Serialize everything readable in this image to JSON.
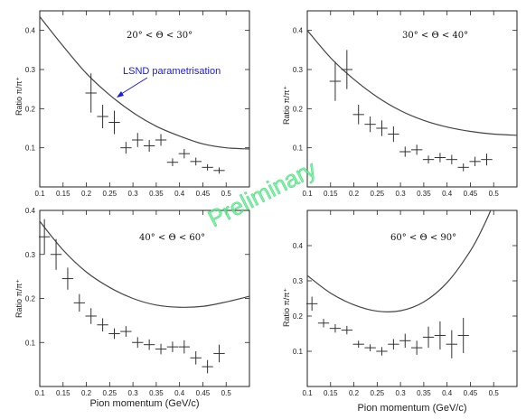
{
  "watermark": "Preliminary",
  "colors": {
    "watermark": "#58f08a",
    "annotation": "#1a1adc",
    "ink": "#222222"
  },
  "chart_data": [
    {
      "type": "scatter",
      "range_label": "20° < Θ < 30°",
      "xlabel": "",
      "ylabel": "Ratio π/π⁺",
      "xlim": [
        0.1,
        0.55
      ],
      "ylim": [
        0,
        0.45
      ],
      "xticks": [
        "0.1",
        "0.15",
        "0.2",
        "0.25",
        "0.3",
        "0.35",
        "0.4",
        "0.45",
        "0.5"
      ],
      "yticks": [
        "0",
        "0.1",
        "0.2",
        "0.3",
        "0.4"
      ],
      "annotation": {
        "text": "LSND parametrisation",
        "target": [
          0.24,
          0.235
        ]
      },
      "points": [
        {
          "x": 0.21,
          "y": 0.24,
          "err": 0.05
        },
        {
          "x": 0.235,
          "y": 0.18,
          "err": 0.03
        },
        {
          "x": 0.26,
          "y": 0.165,
          "err": 0.03
        },
        {
          "x": 0.285,
          "y": 0.1,
          "err": 0.015
        },
        {
          "x": 0.31,
          "y": 0.12,
          "err": 0.018
        },
        {
          "x": 0.335,
          "y": 0.105,
          "err": 0.015
        },
        {
          "x": 0.36,
          "y": 0.12,
          "err": 0.015
        },
        {
          "x": 0.385,
          "y": 0.063,
          "err": 0.01
        },
        {
          "x": 0.41,
          "y": 0.085,
          "err": 0.012
        },
        {
          "x": 0.435,
          "y": 0.065,
          "err": 0.01
        },
        {
          "x": 0.46,
          "y": 0.05,
          "err": 0.008
        },
        {
          "x": 0.485,
          "y": 0.042,
          "err": 0.008
        }
      ],
      "curve": [
        [
          0.1,
          0.435
        ],
        [
          0.15,
          0.36
        ],
        [
          0.2,
          0.29
        ],
        [
          0.25,
          0.235
        ],
        [
          0.3,
          0.19
        ],
        [
          0.35,
          0.155
        ],
        [
          0.4,
          0.13
        ],
        [
          0.45,
          0.11
        ],
        [
          0.5,
          0.1
        ],
        [
          0.55,
          0.097
        ]
      ]
    },
    {
      "type": "scatter",
      "range_label": "30° < Θ < 40°",
      "xlabel": "",
      "ylabel": "Ratio π/π⁺",
      "xlim": [
        0.1,
        0.55
      ],
      "ylim": [
        0,
        0.45
      ],
      "xticks": [
        "0.1",
        "0.15",
        "0.2",
        "0.25",
        "0.3",
        "0.35",
        "0.4",
        "0.45",
        "0.5"
      ],
      "yticks": [
        "0",
        "0.1",
        "0.2",
        "0.3",
        "0.4"
      ],
      "points": [
        {
          "x": 0.16,
          "y": 0.27,
          "err": 0.05
        },
        {
          "x": 0.185,
          "y": 0.3,
          "err": 0.05
        },
        {
          "x": 0.21,
          "y": 0.185,
          "err": 0.025
        },
        {
          "x": 0.235,
          "y": 0.16,
          "err": 0.02
        },
        {
          "x": 0.26,
          "y": 0.15,
          "err": 0.02
        },
        {
          "x": 0.285,
          "y": 0.135,
          "err": 0.02
        },
        {
          "x": 0.31,
          "y": 0.09,
          "err": 0.013
        },
        {
          "x": 0.335,
          "y": 0.095,
          "err": 0.013
        },
        {
          "x": 0.36,
          "y": 0.07,
          "err": 0.01
        },
        {
          "x": 0.385,
          "y": 0.075,
          "err": 0.012
        },
        {
          "x": 0.41,
          "y": 0.07,
          "err": 0.012
        },
        {
          "x": 0.435,
          "y": 0.05,
          "err": 0.01
        },
        {
          "x": 0.46,
          "y": 0.065,
          "err": 0.012
        },
        {
          "x": 0.485,
          "y": 0.07,
          "err": 0.015
        }
      ],
      "curve": [
        [
          0.1,
          0.4
        ],
        [
          0.15,
          0.33
        ],
        [
          0.2,
          0.275
        ],
        [
          0.25,
          0.23
        ],
        [
          0.3,
          0.195
        ],
        [
          0.35,
          0.17
        ],
        [
          0.4,
          0.153
        ],
        [
          0.45,
          0.142
        ],
        [
          0.5,
          0.135
        ],
        [
          0.55,
          0.132
        ]
      ]
    },
    {
      "type": "scatter",
      "range_label": "40° < Θ < 60°",
      "xlabel": "",
      "ylabel": "Ratio π/π⁺",
      "xlim": [
        0.1,
        0.55
      ],
      "ylim": [
        0,
        0.4
      ],
      "xticks": [
        "0.1",
        "0.15",
        "0.2",
        "0.25",
        "0.3",
        "0.35",
        "0.4",
        "0.45",
        "0.5"
      ],
      "yticks": [
        "0",
        "0.1",
        "0.2",
        "0.3",
        "0.4"
      ],
      "points": [
        {
          "x": 0.11,
          "y": 0.34,
          "err": 0.04
        },
        {
          "x": 0.135,
          "y": 0.3,
          "err": 0.035
        },
        {
          "x": 0.16,
          "y": 0.245,
          "err": 0.025
        },
        {
          "x": 0.185,
          "y": 0.19,
          "err": 0.02
        },
        {
          "x": 0.21,
          "y": 0.16,
          "err": 0.018
        },
        {
          "x": 0.235,
          "y": 0.14,
          "err": 0.015
        },
        {
          "x": 0.26,
          "y": 0.12,
          "err": 0.012
        },
        {
          "x": 0.285,
          "y": 0.125,
          "err": 0.012
        },
        {
          "x": 0.31,
          "y": 0.1,
          "err": 0.012
        },
        {
          "x": 0.335,
          "y": 0.095,
          "err": 0.012
        },
        {
          "x": 0.36,
          "y": 0.085,
          "err": 0.012
        },
        {
          "x": 0.385,
          "y": 0.09,
          "err": 0.012
        },
        {
          "x": 0.41,
          "y": 0.09,
          "err": 0.015
        },
        {
          "x": 0.435,
          "y": 0.065,
          "err": 0.015
        },
        {
          "x": 0.46,
          "y": 0.045,
          "err": 0.015
        },
        {
          "x": 0.485,
          "y": 0.075,
          "err": 0.02
        }
      ],
      "curve": [
        [
          0.1,
          0.375
        ],
        [
          0.15,
          0.31
        ],
        [
          0.2,
          0.26
        ],
        [
          0.25,
          0.225
        ],
        [
          0.3,
          0.2
        ],
        [
          0.35,
          0.185
        ],
        [
          0.4,
          0.18
        ],
        [
          0.45,
          0.182
        ],
        [
          0.5,
          0.192
        ],
        [
          0.55,
          0.205
        ]
      ]
    },
    {
      "type": "scatter",
      "range_label": "60° < Θ < 90°",
      "xlabel": "Pion momentum (GeV/c)",
      "ylabel": "Ratio π/π⁺",
      "xlim": [
        0.1,
        0.55
      ],
      "ylim": [
        0,
        0.5
      ],
      "xticks": [
        "0.1",
        "0.15",
        "0.2",
        "0.25",
        "0.3",
        "0.35",
        "0.4",
        "0.45",
        "0.5"
      ],
      "yticks": [
        "0",
        "0.1",
        "0.2",
        "0.3",
        "0.4"
      ],
      "points": [
        {
          "x": 0.11,
          "y": 0.235,
          "err": 0.02
        },
        {
          "x": 0.135,
          "y": 0.18,
          "err": 0.012
        },
        {
          "x": 0.16,
          "y": 0.165,
          "err": 0.012
        },
        {
          "x": 0.185,
          "y": 0.16,
          "err": 0.012
        },
        {
          "x": 0.21,
          "y": 0.12,
          "err": 0.01
        },
        {
          "x": 0.235,
          "y": 0.11,
          "err": 0.01
        },
        {
          "x": 0.26,
          "y": 0.1,
          "err": 0.012
        },
        {
          "x": 0.285,
          "y": 0.12,
          "err": 0.015
        },
        {
          "x": 0.31,
          "y": 0.13,
          "err": 0.02
        },
        {
          "x": 0.335,
          "y": 0.11,
          "err": 0.02
        },
        {
          "x": 0.36,
          "y": 0.14,
          "err": 0.03
        },
        {
          "x": 0.385,
          "y": 0.145,
          "err": 0.04
        },
        {
          "x": 0.41,
          "y": 0.12,
          "err": 0.04
        },
        {
          "x": 0.435,
          "y": 0.145,
          "err": 0.05
        }
      ],
      "curve": [
        [
          0.1,
          0.315
        ],
        [
          0.15,
          0.265
        ],
        [
          0.2,
          0.232
        ],
        [
          0.25,
          0.214
        ],
        [
          0.3,
          0.215
        ],
        [
          0.35,
          0.24
        ],
        [
          0.4,
          0.295
        ],
        [
          0.45,
          0.385
        ],
        [
          0.48,
          0.46
        ],
        [
          0.5,
          0.52
        ]
      ]
    }
  ],
  "shared_xlabel": "Pion momentum (GeV/c)"
}
